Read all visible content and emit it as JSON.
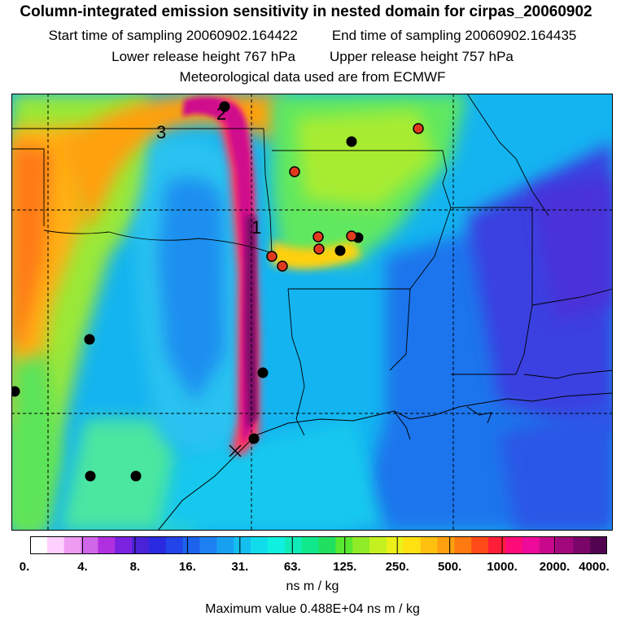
{
  "header": {
    "title": "Column-integrated emission sensitivity in nested domain for cirpas_20060902",
    "start_label": "Start time of sampling 20060902.164422",
    "end_label": "End time of sampling 20060902.164435",
    "lower_label": "Lower release height  767 hPa",
    "upper_label": "Upper release height  757 hPa",
    "met_label": "Meteorological data used are from ECMWF"
  },
  "map": {
    "trajectory_labels": [
      "1",
      "2",
      "3"
    ],
    "station_colors": {
      "black": "#000000",
      "red": "#e03a1e"
    },
    "release_marker": "x-marker-icon"
  },
  "legend": {
    "tick_labels": [
      "0.",
      "4.",
      "8.",
      "16.",
      "31.",
      "63.",
      "125.",
      "250.",
      "500.",
      "1000.",
      "2000.",
      "4000."
    ],
    "colors": [
      "#ffffff",
      "#ffd0ff",
      "#ee9bf2",
      "#d066e8",
      "#b030e0",
      "#7a22e0",
      "#4a22d8",
      "#2a2ae0",
      "#2244e8",
      "#1c62ec",
      "#1c80f0",
      "#18a0f0",
      "#14bff0",
      "#10dcec",
      "#10f0e0",
      "#10ecb8",
      "#10e88c",
      "#20e060",
      "#58e830",
      "#90ec28",
      "#c4f020",
      "#ecf018",
      "#ffe010",
      "#ffc010",
      "#ffa010",
      "#ff7a10",
      "#ff4a18",
      "#ff1e38",
      "#ff0c78",
      "#ee0a9a",
      "#c8088c",
      "#a0087c",
      "#7a066a",
      "#520450"
    ],
    "units": "ns m / kg",
    "max_value": "Maximum value  0.488E+04 ns m / kg"
  }
}
